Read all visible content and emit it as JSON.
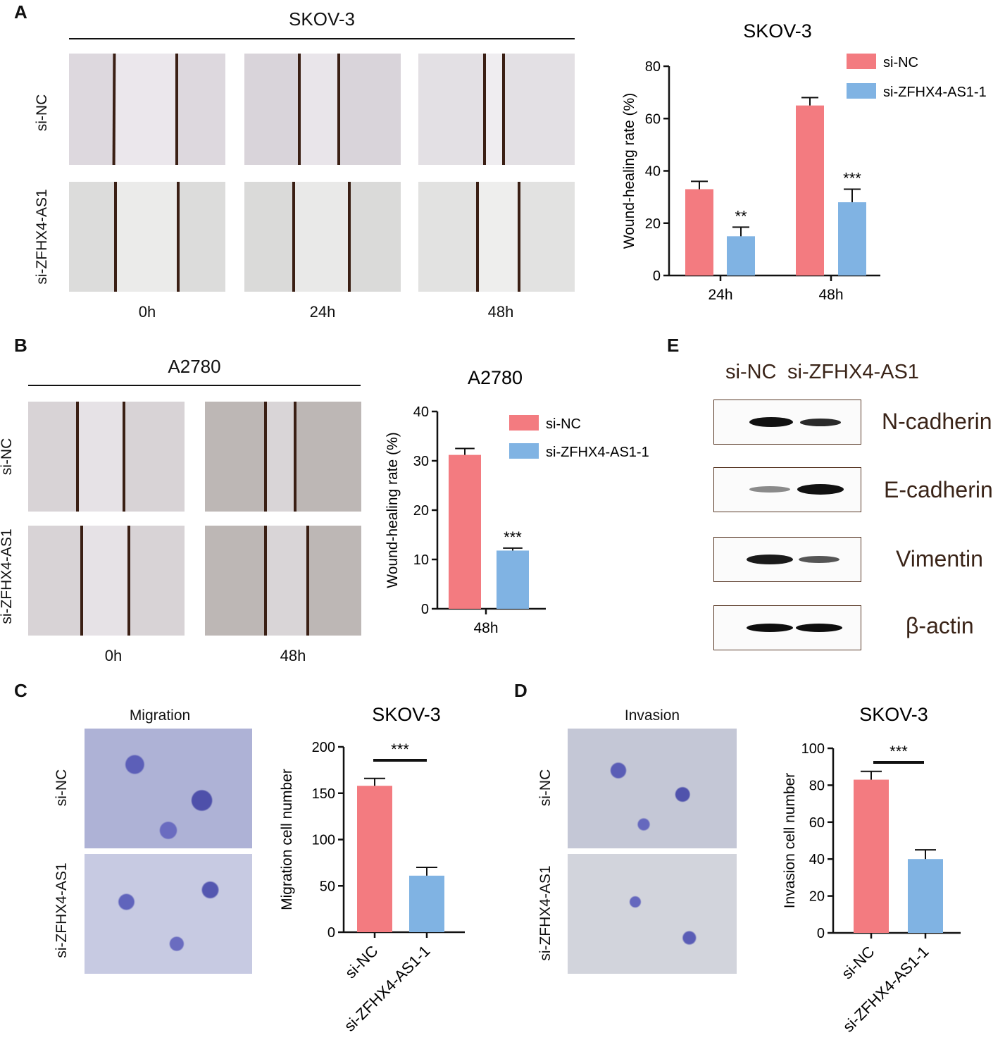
{
  "colors": {
    "nc": "#f37b80",
    "si": "#80b3e3",
    "scratch": "#3a1f14",
    "wb_label": "#3a2418"
  },
  "panel_labels": [
    "A",
    "B",
    "C",
    "D",
    "E"
  ],
  "panelA": {
    "title": "SKOV-3",
    "row_labels": [
      "si-NC",
      "si-ZFHX4-AS1"
    ],
    "time_labels": [
      "0h",
      "24h",
      "48h"
    ]
  },
  "panelB": {
    "title": "A2780",
    "row_labels": [
      "si-NC",
      "si-ZFHX4-AS1"
    ],
    "time_labels": [
      "0h",
      "48h"
    ]
  },
  "panelC": {
    "header": "Migration",
    "row_labels": [
      "si-NC",
      "si-ZFHX4-AS1"
    ]
  },
  "panelD": {
    "header": "Invasion",
    "row_labels": [
      "si-NC",
      "si-ZFHX4-AS1"
    ]
  },
  "panelE": {
    "columns": [
      "si-NC",
      "si-ZFHX4-AS1"
    ],
    "proteins": [
      "N-cadherin",
      "E-cadherin",
      "Vimentin",
      "β-actin"
    ]
  },
  "chart_data": [
    {
      "id": "A",
      "type": "bar",
      "title": "SKOV-3",
      "ylabel": "Wound-healing rate  (%)",
      "xlabel": "",
      "categories": [
        "24h",
        "48h"
      ],
      "ylim": [
        0,
        80
      ],
      "yticks": [
        0,
        20,
        40,
        60,
        80
      ],
      "series": [
        {
          "name": "si-NC",
          "values": [
            33,
            65
          ],
          "errors": [
            3,
            3
          ]
        },
        {
          "name": "si-ZFHX4-AS1-1",
          "values": [
            15,
            28
          ],
          "errors": [
            3.5,
            5
          ]
        }
      ],
      "annotations": [
        "**",
        "***"
      ],
      "legend": "top-right"
    },
    {
      "id": "B",
      "type": "bar",
      "title": "A2780",
      "ylabel": "Wound-healing rate  (%)",
      "xlabel": "",
      "categories": [
        "48h"
      ],
      "ylim": [
        0,
        40
      ],
      "yticks": [
        0,
        10,
        20,
        30,
        40
      ],
      "series": [
        {
          "name": "si-NC",
          "values": [
            31.2
          ],
          "errors": [
            1.3
          ]
        },
        {
          "name": "si-ZFHX4-AS1-1",
          "values": [
            11.8
          ],
          "errors": [
            0.5
          ]
        }
      ],
      "annotations": [
        "***"
      ],
      "legend": "top-right"
    },
    {
      "id": "C",
      "type": "bar",
      "title": "SKOV-3",
      "ylabel": "Migration cell number",
      "xlabel": "",
      "categories": [
        "si-NC",
        "si-ZFHX4-AS1-1"
      ],
      "ylim": [
        0,
        200
      ],
      "yticks": [
        0,
        50,
        100,
        150,
        200
      ],
      "values": [
        158,
        61
      ],
      "errors": [
        8,
        9
      ],
      "annotations": [
        "***"
      ]
    },
    {
      "id": "D",
      "type": "bar",
      "title": "SKOV-3",
      "ylabel": "Invasion cell number",
      "xlabel": "",
      "categories": [
        "si-NC",
        "si-ZFHX4-AS1-1"
      ],
      "ylim": [
        0,
        100
      ],
      "yticks": [
        0,
        20,
        40,
        60,
        80,
        100
      ],
      "values": [
        83,
        40
      ],
      "errors": [
        4.5,
        5
      ],
      "annotations": [
        "***"
      ]
    }
  ]
}
